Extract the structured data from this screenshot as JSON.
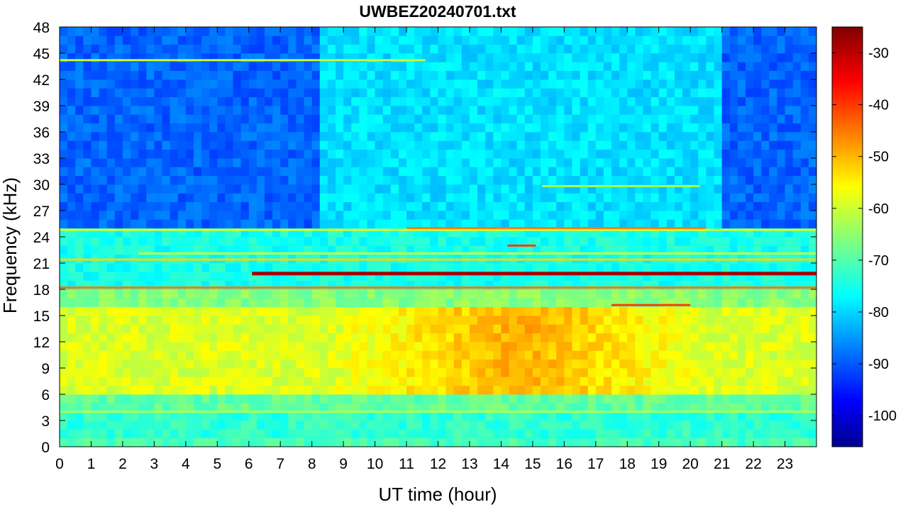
{
  "chart_data": {
    "type": "heatmap",
    "title": "UWBEZ20240701.txt",
    "xlabel": "UT time (hour)",
    "ylabel": "Frequency (kHz)",
    "xlim": [
      0,
      24
    ],
    "ylim": [
      0,
      48
    ],
    "x_ticks": [
      0,
      1,
      2,
      3,
      4,
      5,
      6,
      7,
      8,
      9,
      10,
      11,
      12,
      13,
      14,
      15,
      16,
      17,
      18,
      19,
      20,
      21,
      22,
      23
    ],
    "y_ticks": [
      0,
      3,
      6,
      9,
      12,
      15,
      18,
      21,
      24,
      27,
      30,
      33,
      36,
      39,
      42,
      45,
      48
    ],
    "colorbar": {
      "colormap": "jet",
      "range": [
        -106,
        -25
      ],
      "ticks": [
        -100,
        -90,
        -80,
        -70,
        -60,
        -50,
        -40,
        -30
      ]
    },
    "background_levels_db": {
      "description_bands": [
        {
          "freq_khz": [
            0,
            1
          ],
          "level": -70
        },
        {
          "freq_khz": [
            1,
            4
          ],
          "level": -72
        },
        {
          "freq_khz": [
            4,
            6
          ],
          "level": -68
        },
        {
          "freq_khz": [
            6,
            16
          ],
          "level": -58
        },
        {
          "freq_khz": [
            16,
            18
          ],
          "level": -65
        },
        {
          "freq_khz": [
            18,
            25
          ],
          "level": -74
        },
        {
          "freq_khz": [
            25,
            48
          ],
          "level": -88
        }
      ],
      "daytime_enhancement": {
        "hours": [
          8.5,
          20.5
        ],
        "freq_khz": [
          6,
          16
        ],
        "peak_level": -48
      }
    },
    "signal_lines": [
      {
        "freq_khz": 19.8,
        "hours": [
          6.1,
          24
        ],
        "level": -28
      },
      {
        "freq_khz": 18.2,
        "hours": [
          0,
          24
        ],
        "level": -45
      },
      {
        "freq_khz": 21.4,
        "hours": [
          0,
          24
        ],
        "level": -52
      },
      {
        "freq_khz": 24.8,
        "hours": [
          0,
          24
        ],
        "level": -58
      },
      {
        "freq_khz": 25.0,
        "hours": [
          11,
          20.5
        ],
        "level": -45
      },
      {
        "freq_khz": 44.2,
        "hours": [
          0,
          11.6
        ],
        "level": -60
      },
      {
        "freq_khz": 4.0,
        "hours": [
          0,
          24
        ],
        "level": -62
      },
      {
        "freq_khz": 16.2,
        "hours": [
          17.5,
          20
        ],
        "level": -40
      },
      {
        "freq_khz": 23.0,
        "hours": [
          14.2,
          15.1
        ],
        "level": -40
      },
      {
        "freq_khz": 22.1,
        "hours": [
          2.5,
          24
        ],
        "level": -60
      },
      {
        "freq_khz": 29.8,
        "hours": [
          15.3,
          20.3
        ],
        "level": -62
      }
    ],
    "colors": {
      "axis": "#000000",
      "background": "#ffffff"
    }
  }
}
